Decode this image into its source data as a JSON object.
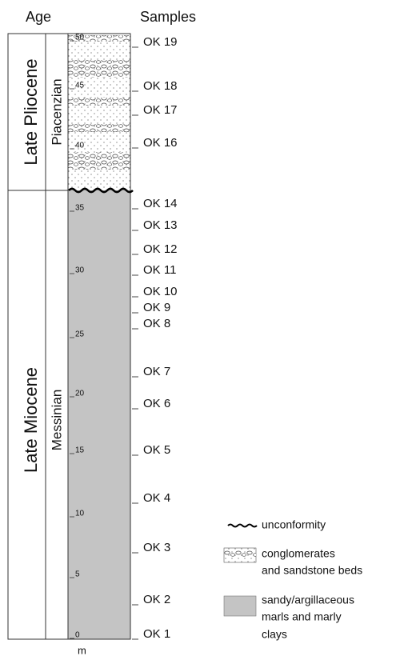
{
  "header": {
    "age": "Age",
    "samples": "Samples"
  },
  "ages": [
    {
      "epoch": "Late Pliocene",
      "stage": "Piacenzian"
    },
    {
      "epoch": "Late Miocene",
      "stage": "Messinian"
    }
  ],
  "depth_ticks": [
    0,
    5,
    10,
    15,
    20,
    25,
    30,
    35,
    40,
    45,
    50
  ],
  "unit": "m",
  "samples": [
    "OK 19",
    "OK 18",
    "OK 17",
    "OK 16",
    "OK 14",
    "OK 13",
    "OK 12",
    "OK 11",
    "OK 10",
    "OK 9",
    "OK 8",
    "OK 7",
    "OK 6",
    "OK 5",
    "OK 4",
    "OK 3",
    "OK 2",
    "OK 1"
  ],
  "legend": [
    {
      "lines": [
        "unconformity"
      ]
    },
    {
      "lines": [
        "conglomerates",
        "and sandstone beds"
      ]
    },
    {
      "lines": [
        "sandy/argillaceous",
        "marls and marly",
        "clays"
      ]
    }
  ]
}
